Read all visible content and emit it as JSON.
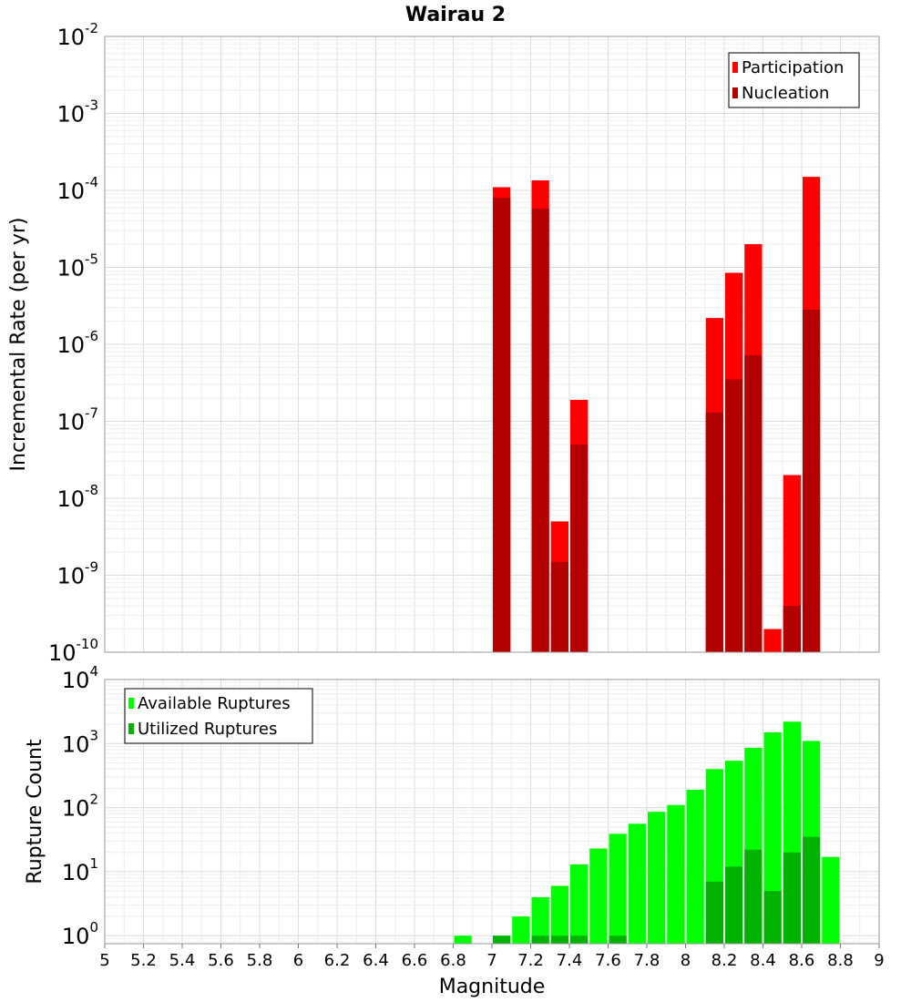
{
  "chart_data": [
    {
      "type": "bar",
      "title": "Wairau 2",
      "ylabel": "Incremental Rate (per yr)",
      "yscale": "log",
      "ylim": [
        1e-10,
        0.01
      ],
      "xlim": [
        5,
        9
      ],
      "y_ticks": [
        {
          "base": "10",
          "exp": "-2"
        },
        {
          "base": "10",
          "exp": "-3"
        },
        {
          "base": "10",
          "exp": "-4"
        },
        {
          "base": "10",
          "exp": "-5"
        },
        {
          "base": "10",
          "exp": "-6"
        },
        {
          "base": "10",
          "exp": "-7"
        },
        {
          "base": "10",
          "exp": "-8"
        },
        {
          "base": "10",
          "exp": "-9"
        },
        {
          "base": "10",
          "exp": "-10"
        }
      ],
      "grid": true,
      "legend_position": "top-right",
      "x": [
        7.05,
        7.25,
        7.35,
        7.45,
        8.15,
        8.25,
        8.35,
        8.45,
        8.55,
        8.65
      ],
      "series": [
        {
          "name": "Participation",
          "color": "#ff0000",
          "values": [
            0.00011,
            0.000135,
            5e-09,
            1.9e-07,
            2.2e-06,
            8.5e-06,
            2e-05,
            2e-10,
            2e-08,
            0.00015
          ]
        },
        {
          "name": "Nucleation",
          "color": "#b30000",
          "values": [
            8e-05,
            5.8e-05,
            1.5e-09,
            5e-08,
            1.3e-07,
            3.5e-07,
            7.2e-07,
            null,
            4e-10,
            2.8e-06
          ]
        }
      ]
    },
    {
      "type": "bar",
      "xlabel": "Magnitude",
      "ylabel": "Rupture Count",
      "yscale": "log",
      "ylim": [
        0.75,
        10000
      ],
      "xlim": [
        5,
        9
      ],
      "x_ticks": [
        "5",
        "5.2",
        "5.4",
        "5.6",
        "5.8",
        "6",
        "6.2",
        "6.4",
        "6.6",
        "6.8",
        "7",
        "7.2",
        "7.4",
        "7.6",
        "7.8",
        "8",
        "8.2",
        "8.4",
        "8.6",
        "8.8",
        "9"
      ],
      "y_ticks": [
        {
          "base": "10",
          "exp": "4"
        },
        {
          "base": "10",
          "exp": "3"
        },
        {
          "base": "10",
          "exp": "2"
        },
        {
          "base": "10",
          "exp": "1"
        },
        {
          "base": "10",
          "exp": "0"
        }
      ],
      "grid": true,
      "legend_position": "top-left",
      "x": [
        6.85,
        7.05,
        7.15,
        7.25,
        7.35,
        7.45,
        7.55,
        7.65,
        7.75,
        7.85,
        7.95,
        8.05,
        8.15,
        8.25,
        8.35,
        8.45,
        8.55,
        8.65,
        8.75
      ],
      "series": [
        {
          "name": "Available Ruptures",
          "color": "#00ff00",
          "values": [
            1,
            1,
            2,
            4,
            6,
            13,
            23,
            39,
            56,
            86,
            110,
            190,
            400,
            540,
            860,
            1500,
            2200,
            1100,
            17
          ]
        },
        {
          "name": "Utilized Ruptures",
          "color": "#00b300",
          "values": [
            null,
            1,
            null,
            1,
            1,
            1,
            null,
            1,
            null,
            null,
            null,
            null,
            7,
            12,
            22,
            5,
            20,
            35,
            null
          ]
        }
      ]
    }
  ]
}
